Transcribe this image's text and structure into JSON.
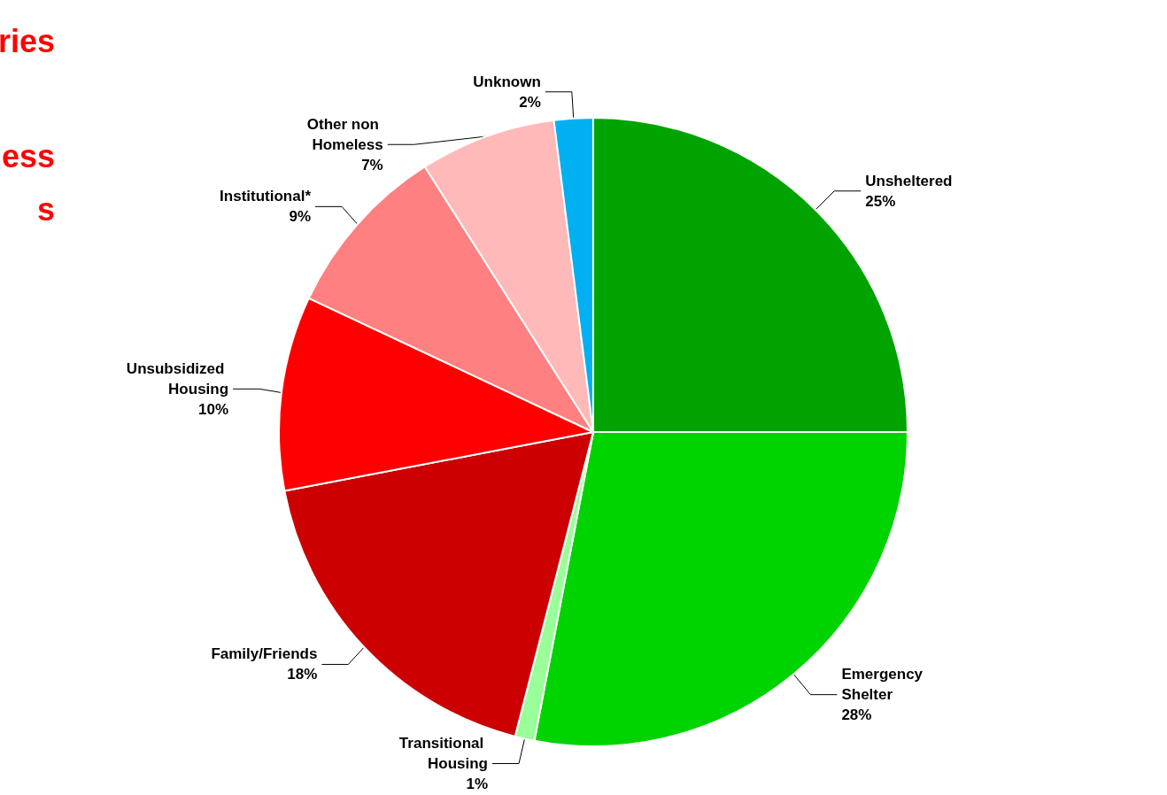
{
  "chart_data": {
    "type": "pie",
    "categories": [
      "Unsheltered",
      "Emergency Shelter",
      "Transitional Housing",
      "Family/Friends",
      "Unsubsidized Housing",
      "Institutional*",
      "Other non Homeless",
      "Unknown"
    ],
    "values": [
      25,
      28,
      1,
      18,
      10,
      9,
      7,
      2
    ],
    "value_labels": [
      "25%",
      "28%",
      "1%",
      "18%",
      "10%",
      "9%",
      "7%",
      "2%"
    ],
    "colors": [
      "#00a300",
      "#00d400",
      "#99ff99",
      "#cc0000",
      "#ff0000",
      "#ff8080",
      "#ffb9b9",
      "#00b0f0"
    ],
    "annotations": [
      "ries",
      "ess",
      "s"
    ],
    "legend": false
  }
}
